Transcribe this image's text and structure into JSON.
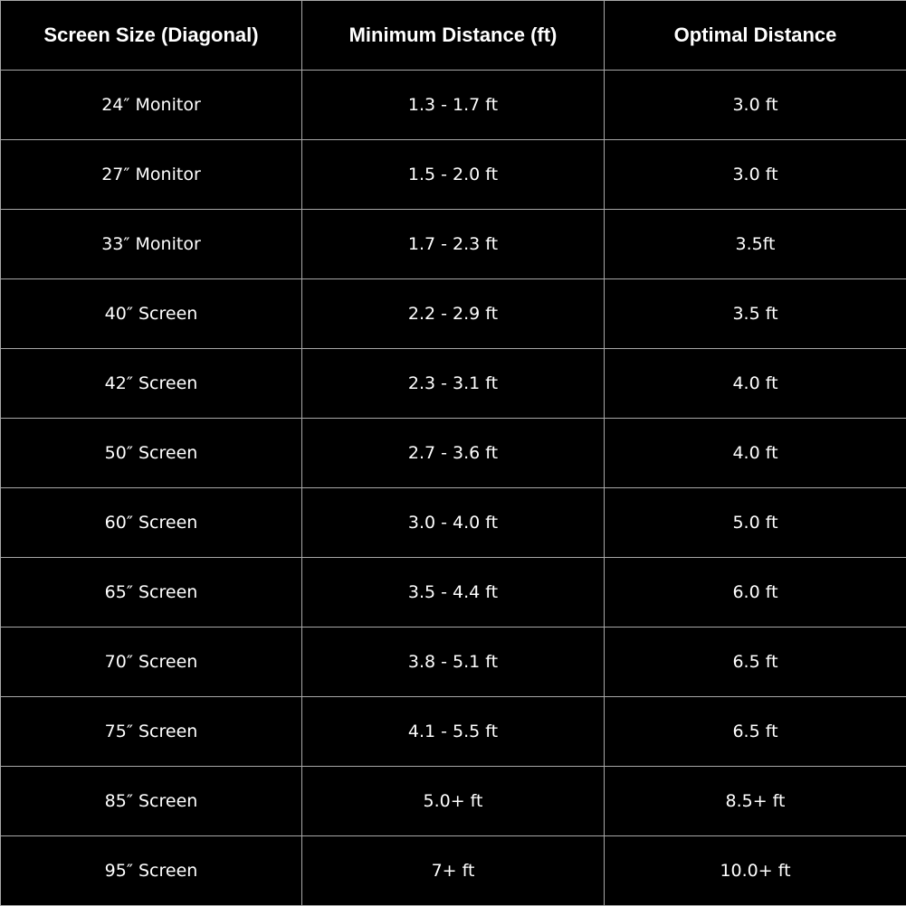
{
  "table": {
    "headers": [
      "Screen Size (Diagonal)",
      "Minimum Distance (ft)",
      "Optimal Distance"
    ],
    "rows": [
      [
        "24″ Monitor",
        "1.3 - 1.7 ft",
        "3.0 ft"
      ],
      [
        "27″ Monitor",
        "1.5 - 2.0 ft",
        "3.0 ft"
      ],
      [
        "33″ Monitor",
        "1.7 - 2.3 ft",
        "3.5ft"
      ],
      [
        "40″  Screen",
        "2.2 - 2.9 ft",
        "3.5 ft"
      ],
      [
        "42″ Screen",
        "2.3 - 3.1 ft",
        "4.0 ft"
      ],
      [
        "50″ Screen",
        "2.7 - 3.6 ft",
        "4.0 ft"
      ],
      [
        "60″ Screen",
        "3.0 - 4.0 ft",
        "5.0 ft"
      ],
      [
        "65″ Screen",
        "3.5 - 4.4 ft",
        "6.0 ft"
      ],
      [
        "70″ Screen",
        "3.8 - 5.1 ft",
        "6.5 ft"
      ],
      [
        "75″ Screen",
        "4.1 - 5.5 ft",
        "6.5 ft"
      ],
      [
        "85″ Screen",
        "5.0+ ft",
        "8.5+ ft"
      ],
      [
        "95″ Screen",
        "7+ ft",
        "10.0+ ft"
      ]
    ]
  },
  "colors": {
    "background": "#000000",
    "text": "#ffffff",
    "grid": "#a8a8a8"
  }
}
